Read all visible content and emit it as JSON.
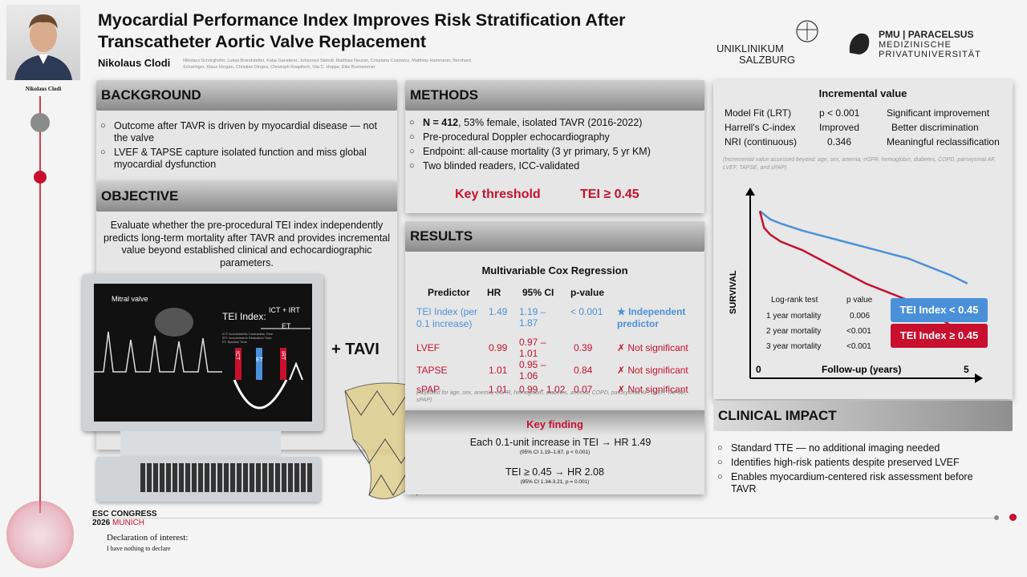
{
  "presenter": {
    "name": "Nikolaus Clodi"
  },
  "title_line1": "Myocardial Performance Index Improves Risk Stratification After",
  "title_line2": "Transcatheter Aortic Valve Replacement",
  "author_main": "Nikolaus Clodi",
  "coauthors_line1": "Nikolaus Schörghofer, Lukas Brandstetter, Katja Gansterer, Johannes Steindl, Matthias Neuner, Crispiana Cozowicz, Matthias Hammerer, Bernhard",
  "coauthors_line2": "Scharinger, Klaus Hergan, Christian Dinges, Christoph Knapitsch, Uta C. Hoppe, Elke Boxhammer",
  "logo1_line1": "UNIKLINIKUM",
  "logo1_line2": "SALZBURG",
  "logo2_line1": "PMU | PARACELSUS",
  "logo2_line2": "MEDIZINISCHE",
  "logo2_line3": "PRIVATUNIVERSITÄT",
  "background": {
    "header": "BACKGROUND",
    "bullets": [
      "Outcome after TAVR is driven by myocardial disease — not the valve",
      "LVEF & TAPSE capture isolated function and miss global myocardial dysfunction"
    ]
  },
  "objective": {
    "header": "OBJECTIVE",
    "text": "Evaluate whether the pre-procedural TEI index independently predicts long-term mortality after TAVR and provides incremental value beyond established clinical and echocardiographic parameters."
  },
  "illustration": {
    "mitral": "Mitral valve",
    "tei": "TEI Index:",
    "formula_num": "ICT + IRT",
    "formula_den": "ET",
    "ict": "ICT",
    "et": "ET",
    "irt": "IRT",
    "tavi": "+ TAVI",
    "legend1": "ICT: Isovolumetric Contraction Time",
    "legend2": "IRT: Isovolumetric Relaxation Time",
    "legend3": "ET: Ejection Time"
  },
  "methods": {
    "header": "METHODS",
    "n_bold": "N = 412",
    "n_rest": ", 53% female, isolated TAVR (2016-2022)",
    "bullets": [
      "Pre-procedural Doppler echocardiography",
      "Endpoint: all-cause mortality (3 yr primary, 5 yr KM)",
      "Two blinded readers, ICC-validated"
    ],
    "key_label": "Key threshold",
    "key_value": "TEI ≥ 0.45"
  },
  "results": {
    "header": "RESULTS",
    "table_title": "Multivariable Cox Regression",
    "columns": [
      "Predictor",
      "HR",
      "95% CI",
      "p-value"
    ],
    "rows": [
      {
        "predictor": "TEI Index (per 0.1 increase)",
        "hr": "1.49",
        "ci": "1.19 – 1.87",
        "p": "< 0.001",
        "note": "★ Independent predictor"
      },
      {
        "predictor": "LVEF",
        "hr": "0.99",
        "ci": "0.97 – 1.01",
        "p": "0.39",
        "note": "✗ Not significant"
      },
      {
        "predictor": "TAPSE",
        "hr": "1.01",
        "ci": "0.95 – 1.06",
        "p": "0.84",
        "note": "✗ Not significant"
      },
      {
        "predictor": "sPAP",
        "hr": "1.01",
        "ci": "0.99 - 1.02",
        "p": "0.07",
        "note": "✗ Not significant"
      }
    ],
    "adjusted": "(Adjusted for age, sex, anemia, eGFR, hemoglobin, diabetes, anemia, COPD, paroxysmal AF, LVEF, TAPSE, sPAP)"
  },
  "keyfinding": {
    "title": "Key finding",
    "line1": "Each 0.1-unit increase in TEI  →  HR 1.49",
    "sub1": "(95% CI 1.19–1.87,  p < 0.001)",
    "line2": "TEI ≥ 0.45 → HR 2.08",
    "sub2": "(95% CI 1.34-3.21, p = 0.001)"
  },
  "incremental": {
    "title": "Incremental value",
    "rows": [
      [
        "Model Fit (LRT)",
        "p < 0.001",
        "Significant improvement"
      ],
      [
        "Harrell's C-index",
        "Improved",
        "Better discrimination"
      ],
      [
        "NRI (continuous)",
        "0.346",
        "Meaningful reclassification"
      ]
    ],
    "note": "(Incremental value assessed beyond: age, sex, anemia, eGFR, hemoglobin, diabetes, COPD, paroxysmal AF, LVEF, TAPSE, and sPAP)"
  },
  "chart_data": {
    "type": "line",
    "ylabel": "SURVIVAL",
    "xlabel": "Follow-up (years)",
    "xlim": [
      0,
      5
    ],
    "x_ticks": [
      "0",
      "5"
    ],
    "series": [
      {
        "name": "TEI Index < 0.45",
        "color": "#4a90d9",
        "x": [
          0,
          0.25,
          0.5,
          1,
          1.5,
          2,
          2.5,
          3,
          3.5,
          4,
          4.5,
          4.9
        ],
        "y": [
          1.0,
          0.97,
          0.955,
          0.93,
          0.91,
          0.89,
          0.87,
          0.85,
          0.83,
          0.8,
          0.77,
          0.74
        ]
      },
      {
        "name": "TEI Index ≥ 0.45",
        "color": "#c8102e",
        "x": [
          0,
          0.1,
          0.25,
          0.5,
          1,
          1.5,
          2,
          2.5,
          3,
          3.5,
          4,
          4.5,
          4.9
        ],
        "y": [
          1.0,
          0.94,
          0.915,
          0.89,
          0.86,
          0.82,
          0.78,
          0.74,
          0.71,
          0.68,
          0.64,
          0.59,
          0.55
        ]
      }
    ],
    "ylim": [
      0.4,
      1.05
    ],
    "logrank": {
      "header": [
        "Log-rank test",
        "p value"
      ],
      "rows": [
        [
          "1 year mortality",
          "0.006"
        ],
        [
          "2 year mortality",
          "<0.001"
        ],
        [
          "3 year mortality",
          "<0.001"
        ]
      ]
    }
  },
  "clinical": {
    "header": "CLINICAL IMPACT",
    "bullets": [
      "Standard TTE — no additional imaging needed",
      "Identifies high-risk patients despite preserved LVEF",
      "Enables myocardium-centered risk assessment before TAVR"
    ]
  },
  "footer": {
    "esc1": "ESC CONGRESS",
    "esc2a": "2026",
    "esc2b": "MUNICH",
    "decl": "Declaration of interest:",
    "decl2": "I have nothing to declare"
  },
  "colors": {
    "red": "#c8102e",
    "blue": "#4a90d9"
  }
}
